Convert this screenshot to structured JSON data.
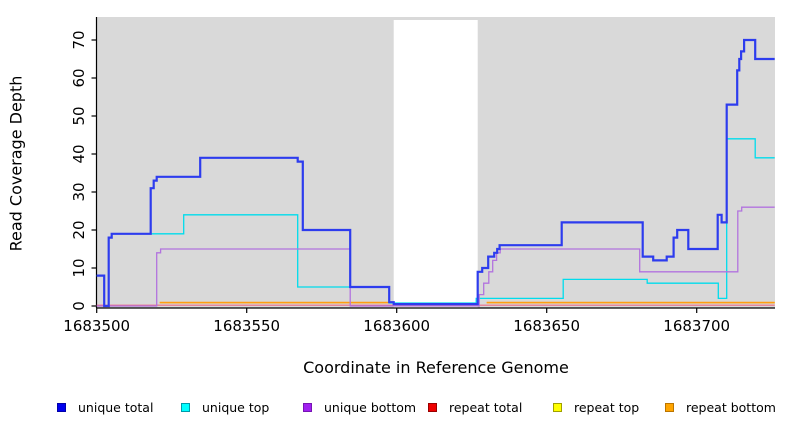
{
  "chart_data": {
    "type": "line",
    "subtype": "step-coverage-plot",
    "title": "",
    "xlabel": "Coordinate in Reference Genome",
    "ylabel": "Read Coverage Depth",
    "xlim": [
      1683499,
      1683726
    ],
    "ylim": [
      0,
      73
    ],
    "grid": false,
    "panel_background": "#d9d9d9",
    "no_data_region": [
      1683599,
      1683627
    ],
    "x_ticks": [
      1683500,
      1683550,
      1683600,
      1683650,
      1683700
    ],
    "y_ticks": [
      0,
      10,
      20,
      30,
      40,
      50,
      60,
      70
    ],
    "legend_position": "bottom",
    "series": [
      {
        "name": "unique total",
        "color": "#2d3cee",
        "legend_fill": "#0000ee",
        "legend_border": "#0000aa",
        "width": 2.2,
        "segments": [
          [
            [
              1683500,
              8
            ],
            [
              1683502.5,
              0
            ],
            [
              1683504,
              18
            ],
            [
              1683505,
              19
            ],
            [
              1683518,
              31
            ],
            [
              1683519,
              33
            ],
            [
              1683520,
              34
            ],
            [
              1683534.5,
              39
            ],
            [
              1683567,
              38
            ],
            [
              1683568.7,
              20
            ],
            [
              1683584.5,
              5
            ],
            [
              1683597.5,
              1
            ],
            [
              1683599,
              0.5
            ],
            [
              1683627,
              9
            ],
            [
              1683628.5,
              10
            ],
            [
              1683630.5,
              13
            ],
            [
              1683632.5,
              14
            ],
            [
              1683633.5,
              15
            ],
            [
              1683634.3,
              16
            ],
            [
              1683655,
              22
            ],
            [
              1683682,
              13
            ],
            [
              1683685.5,
              12
            ],
            [
              1683690,
              13
            ],
            [
              1683692.3,
              18
            ],
            [
              1683693.5,
              20
            ],
            [
              1683697.2,
              15
            ],
            [
              1683707,
              24
            ],
            [
              1683708.3,
              22
            ],
            [
              1683710,
              53
            ],
            [
              1683713.5,
              62
            ],
            [
              1683714.2,
              65
            ],
            [
              1683714.8,
              67
            ],
            [
              1683715.8,
              70
            ],
            [
              1683719.5,
              65
            ],
            [
              1683726,
              65
            ]
          ]
        ]
      },
      {
        "name": "unique top",
        "color": "#00dcec",
        "legend_fill": "#00ffff",
        "legend_border": "#009aaa",
        "width": 1.3,
        "segments": [
          [
            [
              1683500,
              8
            ],
            [
              1683502.5,
              0
            ],
            [
              1683504,
              18
            ],
            [
              1683505,
              19
            ],
            [
              1683529,
              24
            ],
            [
              1683567,
              5
            ],
            [
              1683597.5,
              0.8
            ],
            [
              1683626.5,
              2
            ],
            [
              1683655.5,
              7
            ],
            [
              1683683.5,
              6
            ],
            [
              1683707.2,
              2
            ],
            [
              1683710,
              44
            ],
            [
              1683719.5,
              39
            ],
            [
              1683726,
              39
            ]
          ]
        ]
      },
      {
        "name": "unique bottom",
        "color": "#b273de",
        "legend_fill": "#a020f0",
        "legend_border": "#7714b4",
        "width": 1.3,
        "segments": [
          [
            [
              1683500,
              0
            ],
            [
              1683520,
              14
            ],
            [
              1683521.3,
              15
            ],
            [
              1683584.5,
              0
            ],
            [
              1683627.5,
              3
            ],
            [
              1683629,
              6
            ],
            [
              1683630.7,
              9
            ],
            [
              1683632,
              12
            ],
            [
              1683633.3,
              14
            ],
            [
              1683634.5,
              15
            ],
            [
              1683681,
              9
            ],
            [
              1683713.7,
              25
            ],
            [
              1683715,
              26
            ],
            [
              1683726,
              26
            ]
          ]
        ]
      },
      {
        "name": "repeat total",
        "color": "#ec6c84",
        "legend_fill": "#ee0000",
        "legend_border": "#990000",
        "width": 1.2,
        "segments": [
          [
            [
              1683500,
              0.2
            ],
            [
              1683726,
              0.2
            ]
          ]
        ]
      },
      {
        "name": "repeat top",
        "color": "#f7e017",
        "legend_fill": "#ffff00",
        "legend_border": "#a0a000",
        "width": 1.2,
        "segments": [
          [
            [
              1683521,
              0.9
            ],
            [
              1683599,
              0.9
            ]
          ],
          [
            [
              1683630,
              0.9
            ],
            [
              1683726,
              0.9
            ]
          ]
        ]
      },
      {
        "name": "repeat bottom",
        "color": "#ff9d12",
        "legend_fill": "#ffa500",
        "legend_border": "#bb7500",
        "width": 1.6,
        "segments": [
          [
            [
              1683521,
              0.9
            ],
            [
              1683599,
              0.9
            ]
          ],
          [
            [
              1683630,
              0.9
            ],
            [
              1683726,
              0.9
            ]
          ]
        ]
      }
    ]
  }
}
